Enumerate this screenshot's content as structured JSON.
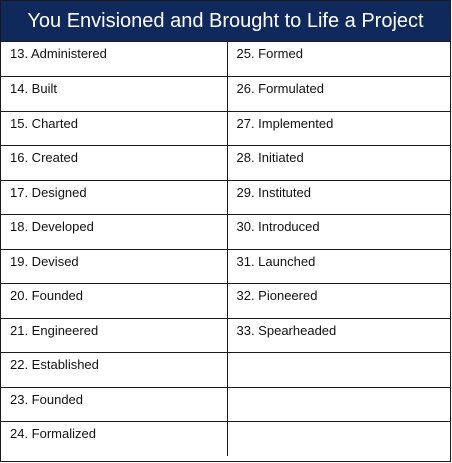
{
  "title": "You Envisioned and Brought to Life a Project",
  "rows": [
    {
      "left": "13. Administered",
      "right": "25. Formed"
    },
    {
      "left": "14. Built",
      "right": "26. Formulated"
    },
    {
      "left": "15. Charted",
      "right": "27. Implemented"
    },
    {
      "left": "16. Created",
      "right": "28. Initiated"
    },
    {
      "left": "17. Designed",
      "right": "29. Instituted"
    },
    {
      "left": "18. Developed",
      "right": "30. Introduced"
    },
    {
      "left": "19. Devised",
      "right": "31. Launched"
    },
    {
      "left": "20. Founded",
      "right": "32. Pioneered"
    },
    {
      "left": "21. Engineered",
      "right": "33. Spearheaded"
    },
    {
      "left": "22. Established",
      "right": ""
    },
    {
      "left": "23. Founded",
      "right": ""
    },
    {
      "left": "24. Formalized",
      "right": ""
    }
  ]
}
